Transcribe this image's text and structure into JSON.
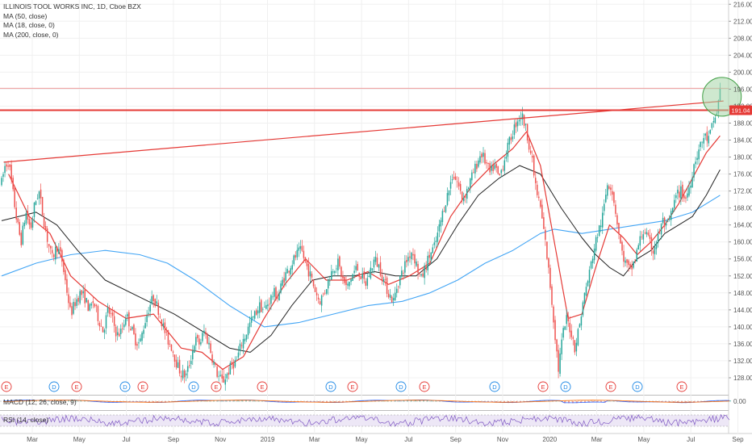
{
  "legend": {
    "title": "ILLINOIS TOOL WORKS INC, 1D, Cboe BZX",
    "ma50": "MA (50, close)",
    "ma18": "MA (18, close, 0)",
    "ma200": "MA (200, close, 0)"
  },
  "panes": {
    "macd_label": "MACD (12, 26, close, 9)",
    "macd_value": "0.00",
    "rsi_label": "RSI (14, close)"
  },
  "colors": {
    "up": "#26a69a",
    "down": "#ef5350",
    "ma18": "#e53935",
    "ma50": "#222222",
    "ma200": "#42a5f5",
    "trendline": "#e53935",
    "highlight_fill": "#a5d6a7",
    "price_tag": "#e53935",
    "rsi": "#7e57c2",
    "rsi_band": "#ede7f6",
    "dividend": "#1e88e5",
    "earnings": "#e53935"
  },
  "chart_data": {
    "type": "candlestick",
    "title": "ILLINOIS TOOL WORKS INC, 1D, Cboe BZX",
    "y_axis": {
      "ticks": [
        128,
        132,
        136,
        140,
        144,
        148,
        152,
        156,
        160,
        164,
        168,
        172,
        176,
        180,
        184,
        188,
        192,
        196,
        200,
        204,
        208,
        212,
        216
      ],
      "ylim": [
        124,
        217
      ],
      "position": "right"
    },
    "x_axis": {
      "ticks": [
        "Mar",
        "May",
        "Jul",
        "Sep",
        "Nov",
        "2019",
        "Mar",
        "May",
        "Jul",
        "Sep",
        "Nov",
        "2020",
        "Mar",
        "May",
        "Jul",
        "Sep"
      ]
    },
    "current_price": "191.04",
    "resistance_level": 191.04,
    "upper_line": 196.2,
    "price_path": [
      [
        0,
        174
      ],
      [
        0.5,
        178
      ],
      [
        1,
        179
      ],
      [
        1.6,
        172
      ],
      [
        2.2,
        165
      ],
      [
        2.8,
        160
      ],
      [
        3.5,
        167
      ],
      [
        4.2,
        163
      ],
      [
        4.8,
        169
      ],
      [
        5.4,
        172
      ],
      [
        6,
        166
      ],
      [
        6.7,
        160
      ],
      [
        7.3,
        156
      ],
      [
        8,
        159
      ],
      [
        8.7,
        156
      ],
      [
        9.3,
        150
      ],
      [
        10,
        143
      ],
      [
        10.7,
        146
      ],
      [
        11.4,
        148
      ],
      [
        12,
        147
      ],
      [
        12.7,
        144
      ],
      [
        13.3,
        146
      ],
      [
        14,
        142
      ],
      [
        14.7,
        139
      ],
      [
        15.4,
        144
      ],
      [
        16,
        142
      ],
      [
        16.7,
        138
      ],
      [
        17.4,
        139
      ],
      [
        18,
        143
      ],
      [
        18.7,
        140
      ],
      [
        19.3,
        137
      ],
      [
        20,
        136
      ],
      [
        20.7,
        141
      ],
      [
        21.4,
        145
      ],
      [
        22,
        147
      ],
      [
        22.7,
        144
      ],
      [
        23.4,
        140
      ],
      [
        24,
        137
      ],
      [
        24.7,
        135
      ],
      [
        25.4,
        131
      ],
      [
        26,
        129
      ],
      [
        26.7,
        128.5
      ],
      [
        27.3,
        132
      ],
      [
        28,
        137
      ],
      [
        28.7,
        136
      ],
      [
        29.3,
        139
      ],
      [
        30,
        136
      ],
      [
        30.6,
        132
      ],
      [
        31.3,
        128.5
      ],
      [
        32,
        127
      ],
      [
        32.7,
        129
      ],
      [
        33.3,
        131
      ],
      [
        34,
        132
      ],
      [
        34.7,
        136
      ],
      [
        35.3,
        138
      ],
      [
        36,
        141
      ],
      [
        36.7,
        143
      ],
      [
        37.3,
        145
      ],
      [
        38,
        144
      ],
      [
        38.7,
        146
      ],
      [
        39.4,
        148
      ],
      [
        40,
        147
      ],
      [
        40.7,
        151
      ],
      [
        41.3,
        153
      ],
      [
        42,
        155
      ],
      [
        42.7,
        157
      ],
      [
        43.4,
        158
      ],
      [
        44,
        155
      ],
      [
        44.7,
        152
      ],
      [
        45.3,
        149
      ],
      [
        46,
        146
      ],
      [
        46.7,
        148
      ],
      [
        47.3,
        151
      ],
      [
        48,
        154
      ],
      [
        48.7,
        155
      ],
      [
        49.4,
        151
      ],
      [
        50,
        149
      ],
      [
        50.7,
        152
      ],
      [
        51.4,
        154
      ],
      [
        52,
        152
      ],
      [
        52.7,
        150
      ],
      [
        53.3,
        153
      ],
      [
        54,
        156
      ],
      [
        54.7,
        154
      ],
      [
        55.3,
        151
      ],
      [
        56,
        148
      ],
      [
        56.7,
        146
      ],
      [
        57.3,
        150
      ],
      [
        58,
        153
      ],
      [
        58.7,
        156
      ],
      [
        59.4,
        158
      ],
      [
        60,
        155
      ],
      [
        60.7,
        151
      ],
      [
        61.3,
        154
      ],
      [
        62,
        157
      ],
      [
        62.7,
        159
      ],
      [
        63.3,
        163
      ],
      [
        64,
        168
      ],
      [
        64.7,
        172
      ],
      [
        65.3,
        176
      ],
      [
        66,
        174
      ],
      [
        66.7,
        170
      ],
      [
        67.3,
        172
      ],
      [
        68,
        175
      ],
      [
        68.7,
        178
      ],
      [
        69.4,
        181
      ],
      [
        70,
        179
      ],
      [
        70.7,
        176
      ],
      [
        71.3,
        178
      ],
      [
        72,
        175
      ],
      [
        72.7,
        179
      ],
      [
        73.4,
        183
      ],
      [
        74,
        186
      ],
      [
        74.7,
        189
      ],
      [
        75.3,
        190
      ],
      [
        76,
        186
      ],
      [
        76.7,
        180
      ],
      [
        77.4,
        172
      ],
      [
        78,
        168
      ],
      [
        78.7,
        160
      ],
      [
        79.4,
        150
      ],
      [
        80,
        140
      ],
      [
        80.6,
        130
      ],
      [
        81.2,
        138
      ],
      [
        81.8,
        142
      ],
      [
        82.4,
        139
      ],
      [
        83,
        135
      ],
      [
        83.7,
        141
      ],
      [
        84.3,
        147
      ],
      [
        85,
        152
      ],
      [
        85.7,
        158
      ],
      [
        86.3,
        162
      ],
      [
        87,
        166
      ],
      [
        87.7,
        174
      ],
      [
        88.3,
        173
      ],
      [
        89,
        166
      ],
      [
        89.7,
        158
      ],
      [
        90.3,
        155
      ],
      [
        91,
        153
      ],
      [
        91.7,
        156
      ],
      [
        92.3,
        160
      ],
      [
        93,
        163
      ],
      [
        93.7,
        160
      ],
      [
        94.3,
        158
      ],
      [
        95,
        161
      ],
      [
        95.7,
        165
      ],
      [
        96.3,
        163
      ],
      [
        97,
        167
      ],
      [
        97.7,
        171
      ],
      [
        98.4,
        172
      ],
      [
        99,
        170
      ],
      [
        99.7,
        174
      ],
      [
        100.3,
        179
      ],
      [
        101,
        182
      ],
      [
        101.7,
        185
      ],
      [
        102.3,
        184
      ],
      [
        103,
        188
      ],
      [
        103.6,
        191
      ],
      [
        104,
        196
      ]
    ],
    "ma18_path": [
      [
        1,
        176
      ],
      [
        4,
        166
      ],
      [
        7,
        162
      ],
      [
        10,
        152
      ],
      [
        14,
        146
      ],
      [
        18,
        142
      ],
      [
        22,
        143
      ],
      [
        26,
        135
      ],
      [
        29,
        134
      ],
      [
        32,
        130
      ],
      [
        35,
        133
      ],
      [
        38,
        142
      ],
      [
        41,
        150
      ],
      [
        44,
        156
      ],
      [
        47,
        151
      ],
      [
        50,
        151
      ],
      [
        53,
        153
      ],
      [
        56,
        150
      ],
      [
        59,
        152
      ],
      [
        62,
        155
      ],
      [
        65,
        166
      ],
      [
        68,
        173
      ],
      [
        71,
        178
      ],
      [
        74,
        182
      ],
      [
        76,
        186
      ],
      [
        78,
        178
      ],
      [
        80,
        160
      ],
      [
        82,
        142
      ],
      [
        84,
        143
      ],
      [
        86,
        154
      ],
      [
        88,
        164
      ],
      [
        90,
        161
      ],
      [
        92,
        157
      ],
      [
        94,
        160
      ],
      [
        96,
        164
      ],
      [
        98,
        169
      ],
      [
        100,
        175
      ],
      [
        102,
        181
      ],
      [
        104,
        185
      ]
    ],
    "ma50_path": [
      [
        0,
        165
      ],
      [
        5,
        167
      ],
      [
        8,
        164
      ],
      [
        11,
        158
      ],
      [
        15,
        151
      ],
      [
        20,
        147
      ],
      [
        25,
        143
      ],
      [
        29,
        139
      ],
      [
        33,
        135
      ],
      [
        36,
        134
      ],
      [
        39,
        138
      ],
      [
        42,
        145
      ],
      [
        45,
        151
      ],
      [
        48,
        152
      ],
      [
        51,
        152
      ],
      [
        54,
        153
      ],
      [
        57,
        152
      ],
      [
        60,
        152
      ],
      [
        63,
        156
      ],
      [
        66,
        164
      ],
      [
        69,
        171
      ],
      [
        72,
        175
      ],
      [
        75,
        178
      ],
      [
        78,
        176
      ],
      [
        81,
        168
      ],
      [
        84,
        161
      ],
      [
        86,
        157
      ],
      [
        88,
        154
      ],
      [
        90,
        152
      ],
      [
        92,
        156
      ],
      [
        94,
        158
      ],
      [
        96,
        162
      ],
      [
        98,
        164
      ],
      [
        100,
        166
      ],
      [
        102,
        171
      ],
      [
        104,
        177
      ]
    ],
    "ma200_path": [
      [
        0,
        152
      ],
      [
        5,
        155
      ],
      [
        10,
        157
      ],
      [
        15,
        158
      ],
      [
        20,
        157
      ],
      [
        24,
        155
      ],
      [
        28,
        151
      ],
      [
        33,
        145
      ],
      [
        38,
        140
      ],
      [
        43,
        141
      ],
      [
        48,
        143
      ],
      [
        53,
        145
      ],
      [
        58,
        146
      ],
      [
        62,
        148
      ],
      [
        66,
        151
      ],
      [
        70,
        155
      ],
      [
        74,
        158
      ],
      [
        78,
        162
      ],
      [
        80,
        163
      ],
      [
        84,
        162
      ],
      [
        88,
        163
      ],
      [
        92,
        164
      ],
      [
        96,
        165
      ],
      [
        100,
        167
      ],
      [
        104,
        171
      ]
    ],
    "resistance_line": {
      "from": [
        0.3,
        178.8
      ],
      "to": [
        104.5,
        193.2
      ]
    },
    "highlight": {
      "center": [
        104.5,
        194.2
      ]
    },
    "events": [
      "E",
      "D",
      "E",
      "D",
      "E",
      "D",
      "E",
      "E",
      "D",
      "E",
      "D",
      "E",
      "D",
      "E",
      "D",
      "E",
      "D",
      "E"
    ]
  }
}
